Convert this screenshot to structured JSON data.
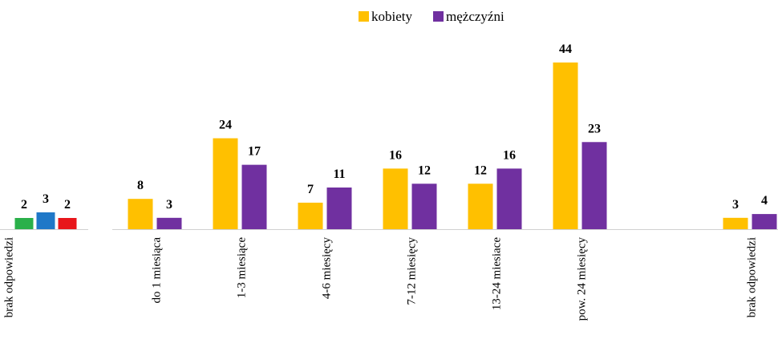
{
  "chart_data": [
    {
      "type": "bar",
      "categories": [
        "brak odpowiedzi"
      ],
      "series": [
        {
          "color": "#2ab04a",
          "values": [
            2
          ]
        },
        {
          "color": "#1f78c8",
          "values": [
            3
          ]
        },
        {
          "color": "#e8161b",
          "values": [
            2
          ]
        }
      ]
    },
    {
      "type": "bar",
      "categories": [
        "do 1 miesiąca",
        "1-3 miesiące",
        "4-6 miesięcy",
        "7-12 miesięcy",
        "13-24 miesiace",
        "pow. 24 miesięcy",
        null,
        "brak odpowiedzi"
      ],
      "series": [
        {
          "name": "kobiety",
          "color": "#ffc000",
          "values": [
            8,
            24,
            7,
            16,
            12,
            44,
            null,
            3
          ]
        },
        {
          "name": "mężczyźni",
          "color": "#7030a0",
          "values": [
            3,
            17,
            11,
            12,
            16,
            23,
            null,
            4
          ]
        }
      ],
      "legend": "top"
    }
  ]
}
